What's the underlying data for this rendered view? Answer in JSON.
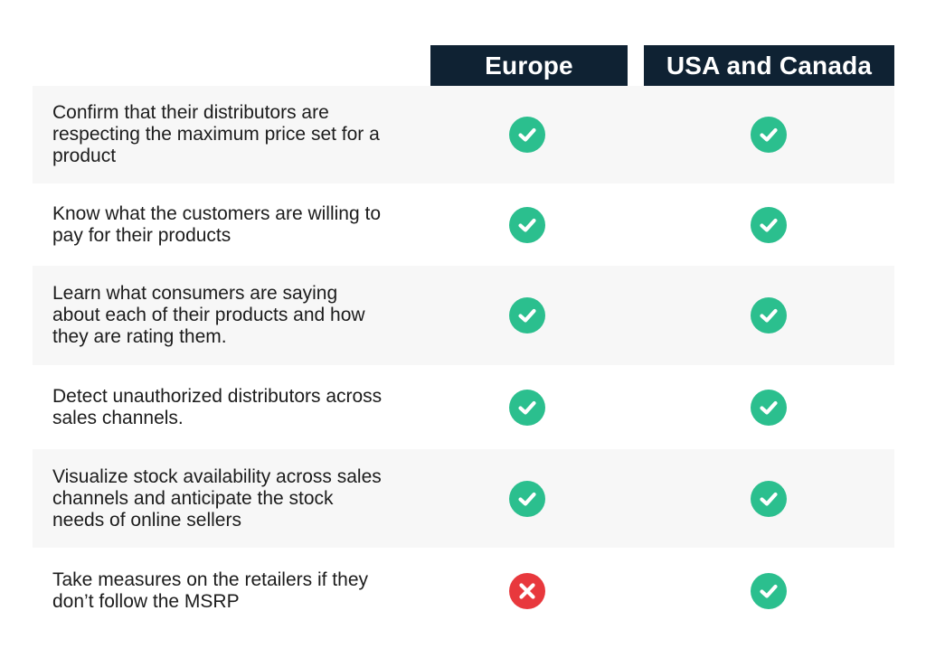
{
  "headers": {
    "europe": "Europe",
    "usa_canada": "USA and Canada"
  },
  "colors": {
    "header_bg": "#0f2233",
    "check_green": "#2bbf8e",
    "cross_red": "#e8383d",
    "row_shade": "#f7f7f7"
  },
  "rows": [
    {
      "label": "Confirm that their distributors are respecting the maximum price set for a product",
      "europe": "check-icon",
      "usa_canada": "check-icon"
    },
    {
      "label": "Know what the customers are willing to pay for their products",
      "europe": "check-icon",
      "usa_canada": "check-icon"
    },
    {
      "label": "Learn what consumers are saying about each of their products and how they are rating them.",
      "europe": "check-icon",
      "usa_canada": "check-icon"
    },
    {
      "label": "Detect unauthorized distributors across sales channels.",
      "europe": "check-icon",
      "usa_canada": "check-icon"
    },
    {
      "label": "Visualize stock availability across sales channels and anticipate the stock needs of online sellers",
      "europe": "check-icon",
      "usa_canada": "check-icon"
    },
    {
      "label": "Take measures on the retailers if they don’t follow the MSRP",
      "europe": "cross-icon",
      "usa_canada": "check-icon"
    }
  ]
}
